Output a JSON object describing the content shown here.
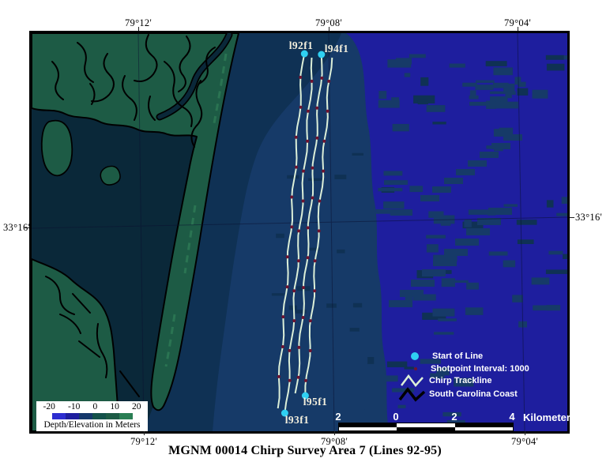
{
  "figure": {
    "title": "MGNM 00014 Chirp Survey Area 7 (Lines 92-95)"
  },
  "axis": {
    "top": [
      "79°12'",
      "79°08'",
      "79°04'"
    ],
    "bottom": [
      "79°12'",
      "79°08'",
      "79°04'"
    ],
    "left": "33°16'",
    "right": "33°16'"
  },
  "tracklines": [
    {
      "label": "l92f1",
      "start_end": "north"
    },
    {
      "label": "l93f1",
      "start_end": "south"
    },
    {
      "label": "l94f1",
      "start_end": "north"
    },
    {
      "label": "l95f1",
      "start_end": "south"
    }
  ],
  "legend": {
    "items": [
      {
        "marker": "start-of-line-dot",
        "label": "Start of Line"
      },
      {
        "marker": "shotpoint-dot",
        "label": "Shotpoint Interval: 1000"
      },
      {
        "marker": "chirp-trackline-zigzag",
        "label": "Chirp Trackline"
      },
      {
        "marker": "coastline-zigzag",
        "label": "South Carolina Coast"
      }
    ]
  },
  "colorbar": {
    "ticks": [
      "-20",
      "-10",
      "0",
      "10",
      "20"
    ],
    "caption": "Depth/Elevation in Meters",
    "ramp_colors": [
      "#2d2dd0",
      "#1e1e9e",
      "#15386b",
      "#14514a",
      "#1d5b45",
      "#2a7e54"
    ]
  },
  "scalebar": {
    "labels": [
      "2",
      "0",
      "2",
      "4"
    ],
    "unit": "Kilometers"
  },
  "colors": {
    "ocean_mid": "#163a68",
    "ocean_deep": "#1e1e9e",
    "ocean_dark": "#0f3154",
    "bay": "#0a2839",
    "land": "#1d5b45",
    "land_light": "#2e7a55",
    "coast_outline": "#000000",
    "graticule": "#0a1030",
    "trackline": "#dcefd8",
    "shotpoint": "#6e1430",
    "start_of_line": "#2fd0f2",
    "trackline_label": "#f2eedc"
  }
}
